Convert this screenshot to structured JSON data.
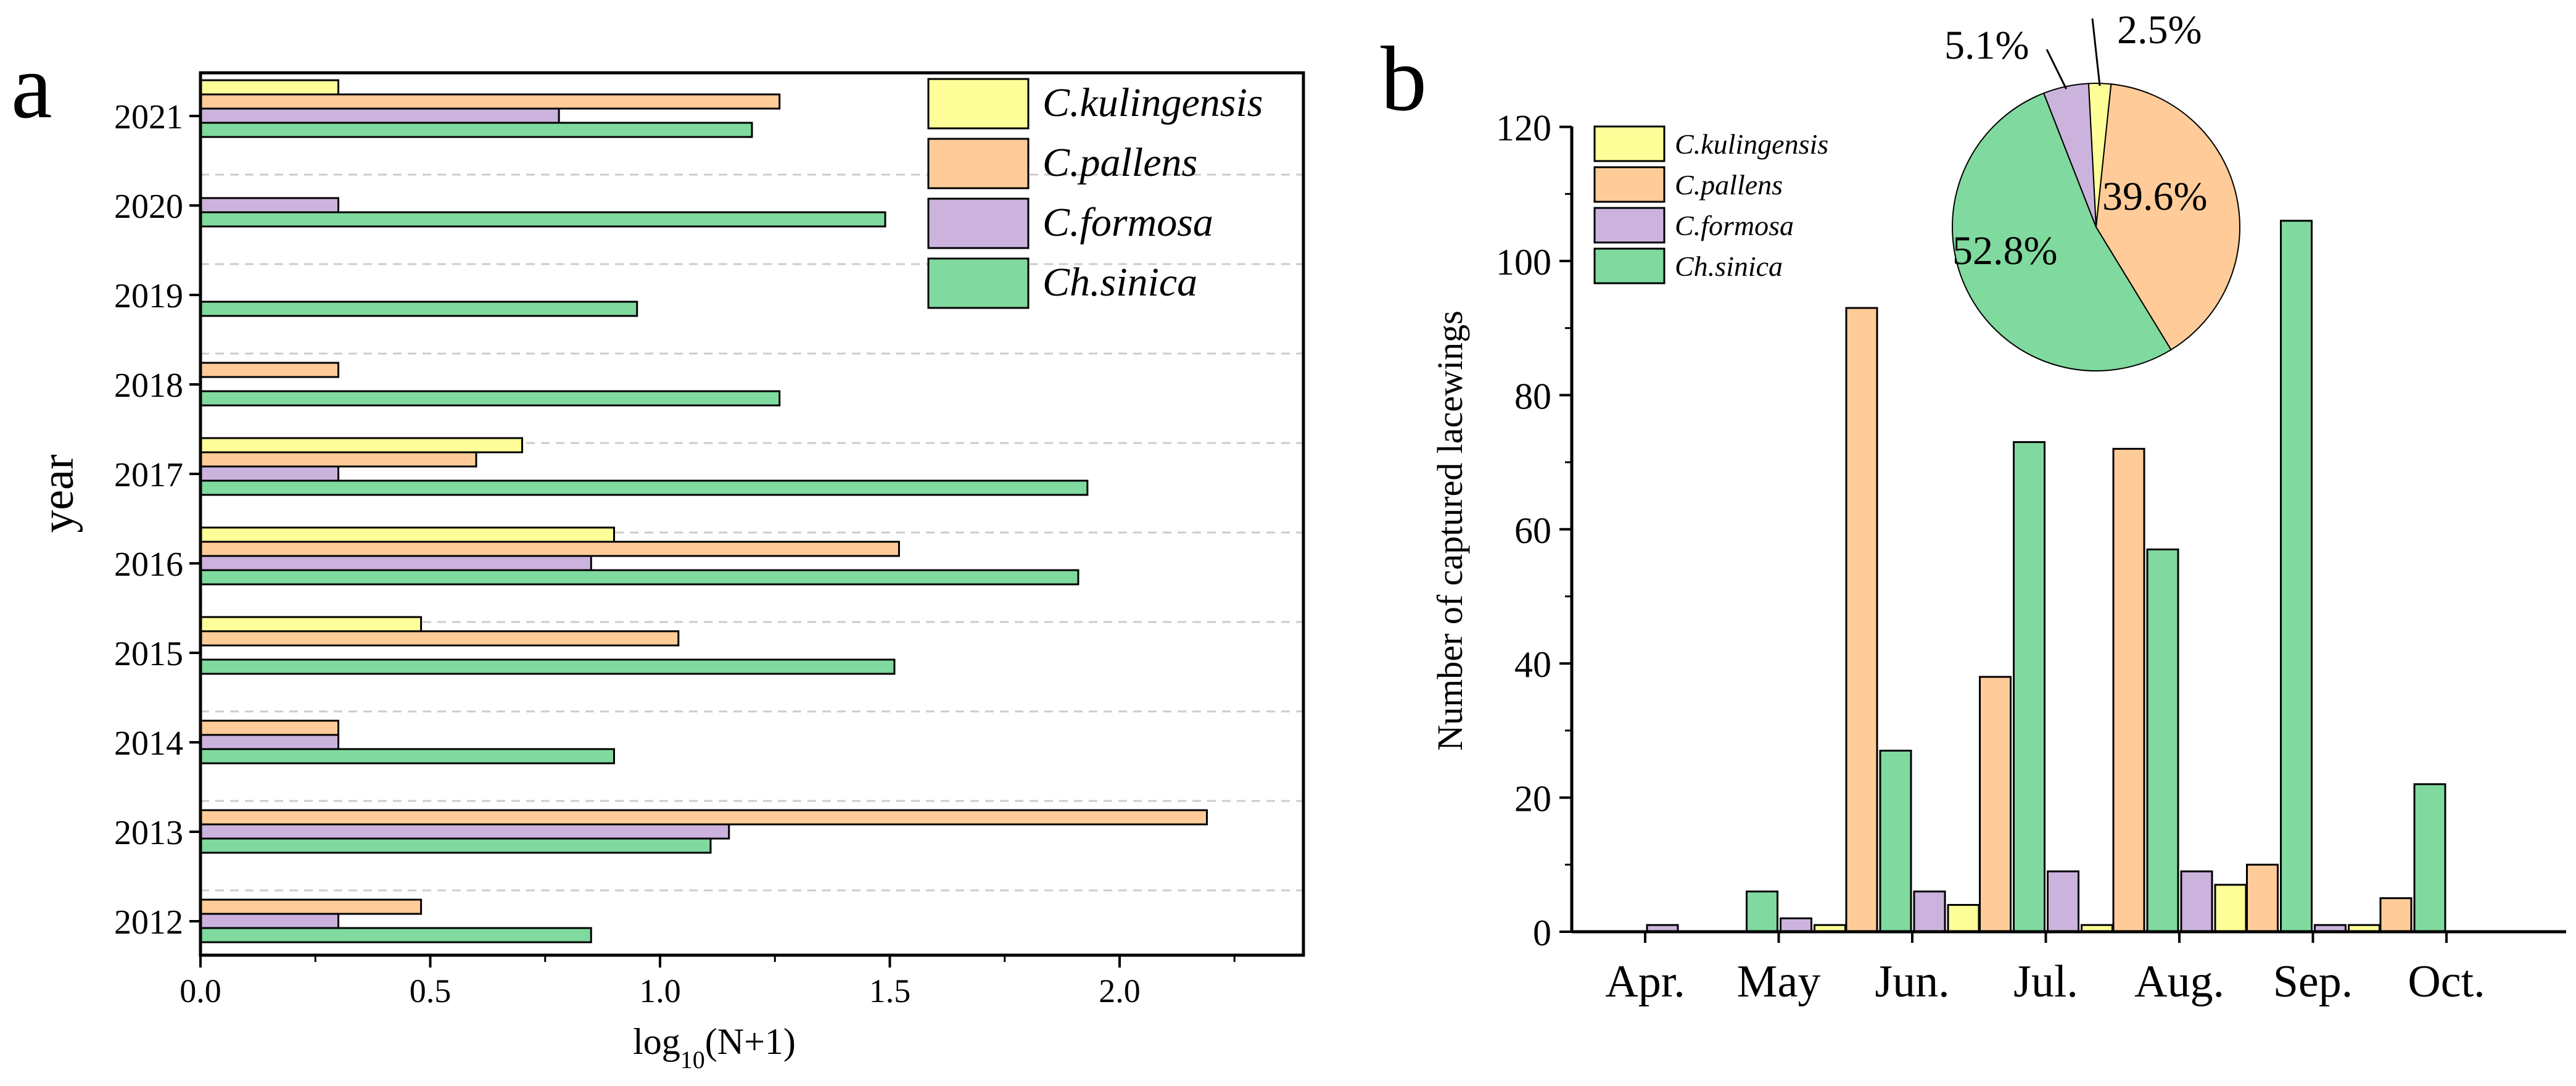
{
  "colors": {
    "C.kulingensis": "#FFFF99",
    "C.pallens": "#FFCC99",
    "C.formosa": "#CCB3DD",
    "Ch.sinica": "#80D99E",
    "axis": "#000000",
    "grid": "#cccccc"
  },
  "chart_data": [
    {
      "panel": "a",
      "type": "bar",
      "orientation": "horizontal",
      "title": "",
      "xlabel_base": "log",
      "xlabel_sub": "10",
      "xlabel_rest": "(N+1)",
      "ylabel": "year",
      "xlim": [
        0,
        2.4
      ],
      "xticks": [
        "0.0",
        "0.5",
        "1.0",
        "1.5",
        "2.0"
      ],
      "xtick_values": [
        0,
        0.5,
        1.0,
        1.5,
        2.0
      ],
      "grid": "horizontal dashed",
      "legend_position": "top-right",
      "categories": [
        "2021",
        "2020",
        "2019",
        "2018",
        "2017",
        "2016",
        "2015",
        "2014",
        "2013",
        "2012"
      ],
      "series": [
        {
          "name": "C.kulingensis",
          "values": [
            0.3,
            null,
            null,
            null,
            0.7,
            0.9,
            0.48,
            null,
            null,
            null
          ]
        },
        {
          "name": "C.pallens",
          "values": [
            1.26,
            null,
            null,
            0.3,
            0.6,
            1.52,
            1.04,
            0.3,
            2.19,
            0.48
          ]
        },
        {
          "name": "C.formosa",
          "values": [
            0.78,
            0.3,
            null,
            null,
            0.3,
            0.85,
            null,
            0.3,
            1.15,
            0.3
          ]
        },
        {
          "name": "Ch.sinica",
          "values": [
            1.2,
            1.49,
            0.95,
            1.26,
            1.93,
            1.91,
            1.51,
            0.9,
            1.11,
            0.85
          ]
        }
      ]
    },
    {
      "panel": "b",
      "type": "bar",
      "title": "",
      "xlabel": "",
      "ylabel": "Number of captured lacewings",
      "ylim": [
        0,
        120
      ],
      "yticks": [
        "0",
        "20",
        "40",
        "60",
        "80",
        "100",
        "120"
      ],
      "ytick_values": [
        0,
        20,
        40,
        60,
        80,
        100,
        120
      ],
      "legend_position": "top-left",
      "categories": [
        "Apr.",
        "May",
        "Jun.",
        "Jul.",
        "Aug.",
        "Sep.",
        "Oct."
      ],
      "series": [
        {
          "name": "C.pallens",
          "values": [
            0,
            0,
            93,
            38,
            72,
            10,
            5
          ]
        },
        {
          "name": "Ch.sinica",
          "values": [
            0,
            6,
            27,
            73,
            57,
            106,
            22
          ]
        },
        {
          "name": "C.formosa",
          "values": [
            1,
            2,
            6,
            9,
            9,
            1,
            0
          ]
        },
        {
          "name": "C.kulingensis",
          "values": [
            0,
            1,
            4,
            1,
            7,
            1,
            0
          ]
        }
      ]
    },
    {
      "panel": "b-inset",
      "type": "pie",
      "slices": [
        {
          "name": "C.kulingensis",
          "value": 2.5,
          "label": "2.5%"
        },
        {
          "name": "C.pallens",
          "value": 39.6,
          "label": "39.6%"
        },
        {
          "name": "Ch.sinica",
          "value": 52.8,
          "label": "52.8%"
        },
        {
          "name": "C.formosa",
          "value": 5.1,
          "label": "5.1%"
        }
      ]
    }
  ],
  "legend_a": [
    "C.kulingensis",
    "C.pallens",
    "C.formosa",
    "Ch.sinica"
  ],
  "legend_b": [
    "C.kulingensis",
    "C.pallens",
    "C.formosa",
    "Ch.sinica"
  ],
  "panel_labels": {
    "a": "a",
    "b": "b"
  }
}
